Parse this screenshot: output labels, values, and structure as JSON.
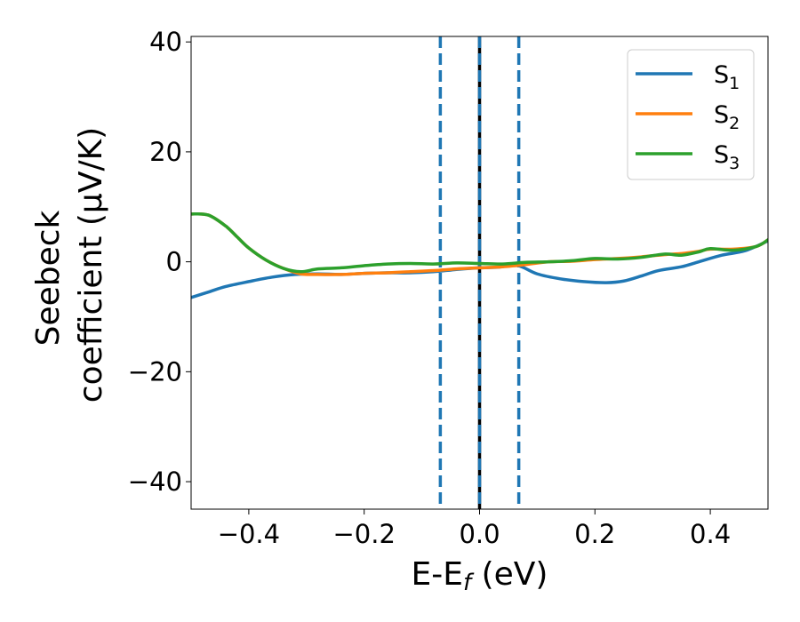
{
  "chart_data": {
    "type": "line",
    "title": "",
    "xlabel": {
      "main": "E-E",
      "sub": "f",
      "unit": " (eV)"
    },
    "ylabel": {
      "line1": "Seebeck",
      "line2": "coefficient  (μV/K)"
    },
    "xlim": [
      -0.5,
      0.5
    ],
    "ylim": [
      -45,
      41
    ],
    "xticks": [
      -0.4,
      -0.2,
      0.0,
      0.2,
      0.4
    ],
    "xtick_labels": [
      "−0.4",
      "−0.2",
      "0.0",
      "0.2",
      "0.4"
    ],
    "yticks": [
      -40,
      -20,
      0,
      20,
      40
    ],
    "ytick_labels": [
      "−40",
      "−20",
      "0",
      "20",
      "40"
    ],
    "grid": false,
    "legend_position": "top-right",
    "series": [
      {
        "name": "S",
        "sub": "1",
        "color": "#1f77b4",
        "x": [
          -0.5,
          -0.47,
          -0.44,
          -0.4,
          -0.36,
          -0.32,
          -0.28,
          -0.24,
          -0.2,
          -0.16,
          -0.12,
          -0.08,
          -0.04,
          0.0,
          0.03,
          0.066,
          0.1,
          0.14,
          0.18,
          0.22,
          0.25,
          0.28,
          0.31,
          0.35,
          0.38,
          0.42,
          0.46,
          0.5
        ],
        "y": [
          -6.5,
          -5.5,
          -4.5,
          -3.6,
          -2.8,
          -2.3,
          -2.2,
          -2.3,
          -2.1,
          -2.0,
          -2.0,
          -1.8,
          -1.4,
          -1.1,
          -1.0,
          -0.7,
          -2.2,
          -3.1,
          -3.6,
          -3.8,
          -3.5,
          -2.6,
          -1.6,
          -0.9,
          0.0,
          1.2,
          2.0,
          3.8
        ]
      },
      {
        "name": "S",
        "sub": "2",
        "color": "#ff7f0e",
        "x": [
          -0.5,
          -0.47,
          -0.44,
          -0.42,
          -0.4,
          -0.37,
          -0.34,
          -0.31,
          -0.28,
          -0.24,
          -0.2,
          -0.16,
          -0.12,
          -0.08,
          -0.04,
          0.0,
          0.04,
          0.08,
          0.12,
          0.16,
          0.2,
          0.24,
          0.28,
          0.32,
          0.35,
          0.38,
          0.4,
          0.44,
          0.48,
          0.5
        ],
        "y": [
          8.7,
          8.5,
          6.5,
          4.5,
          2.5,
          0.3,
          -1.2,
          -2.2,
          -2.3,
          -2.3,
          -2.1,
          -2.0,
          -1.8,
          -1.6,
          -1.3,
          -1.1,
          -0.9,
          -0.5,
          0.0,
          0.1,
          0.4,
          0.6,
          0.9,
          1.3,
          1.5,
          1.9,
          2.3,
          2.3,
          2.8,
          4.0
        ]
      },
      {
        "name": "S",
        "sub": "3",
        "color": "#2ca02c",
        "x": [
          -0.5,
          -0.47,
          -0.44,
          -0.42,
          -0.4,
          -0.37,
          -0.34,
          -0.31,
          -0.28,
          -0.24,
          -0.2,
          -0.16,
          -0.12,
          -0.08,
          -0.04,
          0.0,
          0.04,
          0.08,
          0.12,
          0.16,
          0.2,
          0.24,
          0.28,
          0.32,
          0.35,
          0.38,
          0.4,
          0.44,
          0.48,
          0.5
        ],
        "y": [
          8.7,
          8.5,
          6.5,
          4.5,
          2.5,
          0.3,
          -1.2,
          -1.8,
          -1.3,
          -1.1,
          -0.7,
          -0.4,
          -0.3,
          -0.4,
          -0.2,
          -0.3,
          -0.4,
          -0.1,
          0.0,
          0.2,
          0.6,
          0.5,
          0.8,
          1.4,
          1.2,
          1.8,
          2.4,
          2.1,
          2.8,
          4.0
        ]
      }
    ],
    "vlines": [
      {
        "x": 0.0,
        "color": "#000000",
        "style": "solid"
      },
      {
        "x": 0.0,
        "color": "#1f77b4",
        "style": "dashed"
      },
      {
        "x": -0.068,
        "color": "#1f77b4",
        "style": "dashed"
      },
      {
        "x": 0.068,
        "color": "#1f77b4",
        "style": "dashed"
      }
    ]
  }
}
